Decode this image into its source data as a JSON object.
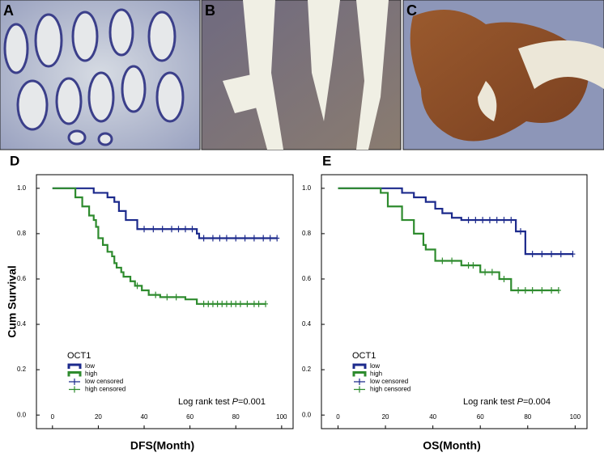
{
  "panels": {
    "labels": [
      "A",
      "B",
      "C"
    ]
  },
  "chart_data": [
    {
      "type": "line",
      "panel": "D",
      "xlabel": "DFS(Month)",
      "ylabel": "Cum Survival",
      "xlim": [
        -7,
        105
      ],
      "ylim": [
        -0.06,
        1.06
      ],
      "xticks": [
        0,
        20,
        40,
        60,
        80,
        100
      ],
      "yticks": [
        {
          "value": 0,
          "label": "0.0"
        },
        {
          "value": 0.2,
          "label": "0.2"
        },
        {
          "value": 0.4,
          "label": "0.4"
        },
        {
          "value": 0.6,
          "label": "0.6"
        },
        {
          "value": 0.8,
          "label": "0.8"
        },
        {
          "value": 1,
          "label": "1.0"
        }
      ],
      "legend_title": "OCT1",
      "legend": "lower left",
      "annotation": {
        "text": "Log rank test",
        "stat": "P",
        "value": "=0.001"
      },
      "series": [
        {
          "name": "low",
          "color": "#1c2a8c",
          "style": "step",
          "x": [
            0,
            18,
            24,
            27,
            29,
            32,
            37,
            63,
            64,
            98
          ],
          "values": [
            1.0,
            0.98,
            0.96,
            0.94,
            0.9,
            0.86,
            0.82,
            0.8,
            0.78,
            0.78
          ]
        },
        {
          "name": "high",
          "color": "#2e8b2e",
          "style": "step",
          "x": [
            0,
            10,
            13,
            16,
            18,
            19,
            20,
            22,
            24,
            26,
            27,
            28,
            30,
            31,
            34,
            36,
            39,
            42,
            47,
            58,
            63,
            93
          ],
          "values": [
            1.0,
            0.96,
            0.92,
            0.88,
            0.86,
            0.83,
            0.78,
            0.75,
            0.72,
            0.7,
            0.67,
            0.65,
            0.63,
            0.61,
            0.59,
            0.57,
            0.55,
            0.53,
            0.52,
            0.51,
            0.49,
            0.49
          ]
        },
        {
          "name": "low censored",
          "color": "#1c2a8c",
          "style": "marker",
          "x": [
            40,
            44,
            48,
            52,
            55,
            58,
            61,
            66,
            70,
            73,
            76,
            80,
            84,
            88,
            92,
            95,
            98
          ],
          "values": [
            0.82,
            0.82,
            0.82,
            0.82,
            0.82,
            0.82,
            0.82,
            0.78,
            0.78,
            0.78,
            0.78,
            0.78,
            0.78,
            0.78,
            0.78,
            0.78,
            0.78
          ]
        },
        {
          "name": "high censored",
          "color": "#2e8b2e",
          "style": "marker",
          "x": [
            37,
            45,
            50,
            54,
            66,
            68,
            70,
            72,
            74,
            76,
            78,
            80,
            82,
            85,
            88,
            90,
            93
          ],
          "values": [
            0.57,
            0.53,
            0.52,
            0.52,
            0.49,
            0.49,
            0.49,
            0.49,
            0.49,
            0.49,
            0.49,
            0.49,
            0.49,
            0.49,
            0.49,
            0.49,
            0.49
          ]
        }
      ]
    },
    {
      "type": "line",
      "panel": "E",
      "xlabel": "OS(Month)",
      "xlim": [
        -7,
        105
      ],
      "ylim": [
        -0.06,
        1.06
      ],
      "xticks": [
        0,
        20,
        40,
        60,
        80,
        100
      ],
      "yticks": [
        {
          "value": 0,
          "label": "0.0"
        },
        {
          "value": 0.2,
          "label": "0.2"
        },
        {
          "value": 0.4,
          "label": "0.4"
        },
        {
          "value": 0.6,
          "label": "0.6"
        },
        {
          "value": 0.8,
          "label": "0.8"
        },
        {
          "value": 1,
          "label": "1.0"
        }
      ],
      "legend_title": "OCT1",
      "legend": "lower left",
      "annotation": {
        "text": "Log rank test",
        "stat": "P",
        "value": "=0.004"
      },
      "series": [
        {
          "name": "low",
          "color": "#1c2a8c",
          "style": "step",
          "x": [
            0,
            27,
            32,
            37,
            41,
            44,
            48,
            52,
            75,
            79,
            99
          ],
          "values": [
            1.0,
            0.98,
            0.96,
            0.94,
            0.91,
            0.89,
            0.87,
            0.86,
            0.81,
            0.71,
            0.71
          ]
        },
        {
          "name": "high",
          "color": "#2e8b2e",
          "style": "step",
          "x": [
            0,
            18,
            21,
            27,
            32,
            36,
            37,
            41,
            52,
            60,
            68,
            73,
            93
          ],
          "values": [
            1.0,
            0.98,
            0.92,
            0.86,
            0.8,
            0.75,
            0.73,
            0.68,
            0.66,
            0.63,
            0.6,
            0.55,
            0.55
          ]
        },
        {
          "name": "low censored",
          "color": "#1c2a8c",
          "style": "marker",
          "x": [
            55,
            58,
            61,
            64,
            67,
            70,
            73,
            77,
            82,
            86,
            90,
            94,
            99
          ],
          "values": [
            0.86,
            0.86,
            0.86,
            0.86,
            0.86,
            0.86,
            0.86,
            0.81,
            0.71,
            0.71,
            0.71,
            0.71,
            0.71
          ]
        },
        {
          "name": "high censored",
          "color": "#2e8b2e",
          "style": "marker",
          "x": [
            44,
            48,
            55,
            57,
            62,
            65,
            70,
            76,
            79,
            82,
            86,
            90,
            93
          ],
          "values": [
            0.68,
            0.68,
            0.66,
            0.66,
            0.63,
            0.63,
            0.6,
            0.55,
            0.55,
            0.55,
            0.55,
            0.55,
            0.55
          ]
        }
      ]
    }
  ]
}
